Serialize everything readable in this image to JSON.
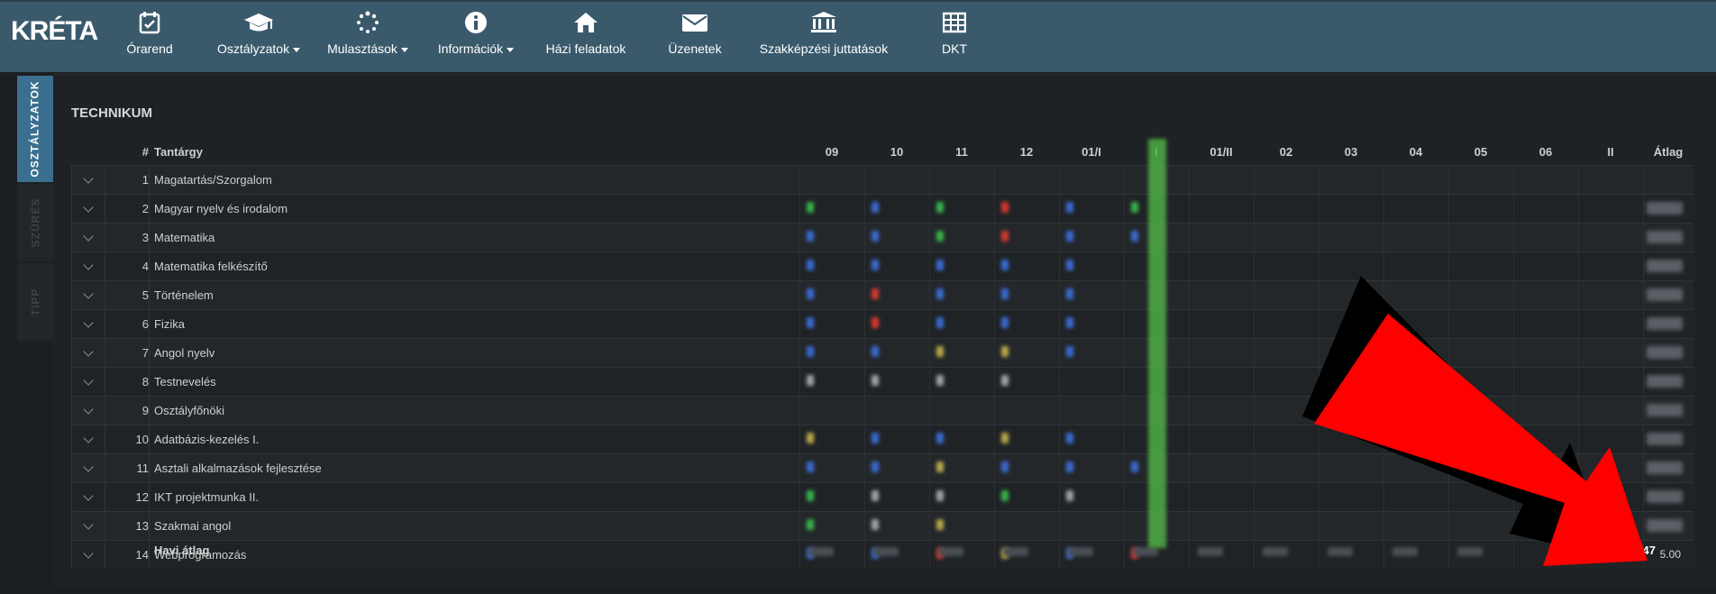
{
  "app": {
    "logo": "KRÉTA"
  },
  "nav": [
    {
      "label": "Órarend",
      "icon": "calendar-check-icon",
      "dropdown": false
    },
    {
      "label": "Osztályzatok",
      "icon": "graduation-cap-icon",
      "dropdown": true
    },
    {
      "label": "Mulasztások",
      "icon": "spinner-icon",
      "dropdown": true
    },
    {
      "label": "Információk",
      "icon": "info-icon",
      "dropdown": true
    },
    {
      "label": "Házi feladatok",
      "icon": "home-icon",
      "dropdown": false
    },
    {
      "label": "Üzenetek",
      "icon": "envelope-icon",
      "dropdown": false
    },
    {
      "label": "Szakképzési juttatások",
      "icon": "bank-icon",
      "dropdown": false
    },
    {
      "label": "DKT",
      "icon": "table-icon",
      "dropdown": false
    }
  ],
  "side_tabs": [
    {
      "label": "OSZTÁLYZATOK",
      "active": true
    },
    {
      "label": "SZŰRÉS",
      "active": false
    },
    {
      "label": "TIPP",
      "active": false
    }
  ],
  "section": {
    "title": "TECHNIKUM"
  },
  "table": {
    "headers": {
      "num": "#",
      "subject": "Tantárgy",
      "months": [
        "09",
        "10",
        "11",
        "12",
        "01/I",
        "I",
        "01/II",
        "02",
        "03",
        "04",
        "05",
        "06",
        "II"
      ],
      "average": "Átlag"
    },
    "rows": [
      {
        "num": "1",
        "subject": "Magatartás/Szorgalom"
      },
      {
        "num": "2",
        "subject": "Magyar nyelv és irodalom"
      },
      {
        "num": "3",
        "subject": "Matematika"
      },
      {
        "num": "4",
        "subject": "Matematika felkészítő"
      },
      {
        "num": "5",
        "subject": "Történelem"
      },
      {
        "num": "6",
        "subject": "Fizika"
      },
      {
        "num": "7",
        "subject": "Angol nyelv"
      },
      {
        "num": "8",
        "subject": "Testnevelés"
      },
      {
        "num": "9",
        "subject": "Osztályfőnöki"
      },
      {
        "num": "10",
        "subject": "Adatbázis-kezelés I."
      },
      {
        "num": "11",
        "subject": "Asztali alkalmazások fejlesztése"
      },
      {
        "num": "12",
        "subject": "IKT projektmunka II."
      },
      {
        "num": "13",
        "subject": "Szakmai angol"
      },
      {
        "num": "14",
        "subject": "Webprogramozás",
        "average": "5.00"
      }
    ],
    "footer": {
      "label": "Havi átlag",
      "final_average": "4.47"
    }
  },
  "colors": {
    "topbar": "#3a5a6c",
    "active_tab": "#3a6f8f",
    "arrow": "#ff0000"
  }
}
